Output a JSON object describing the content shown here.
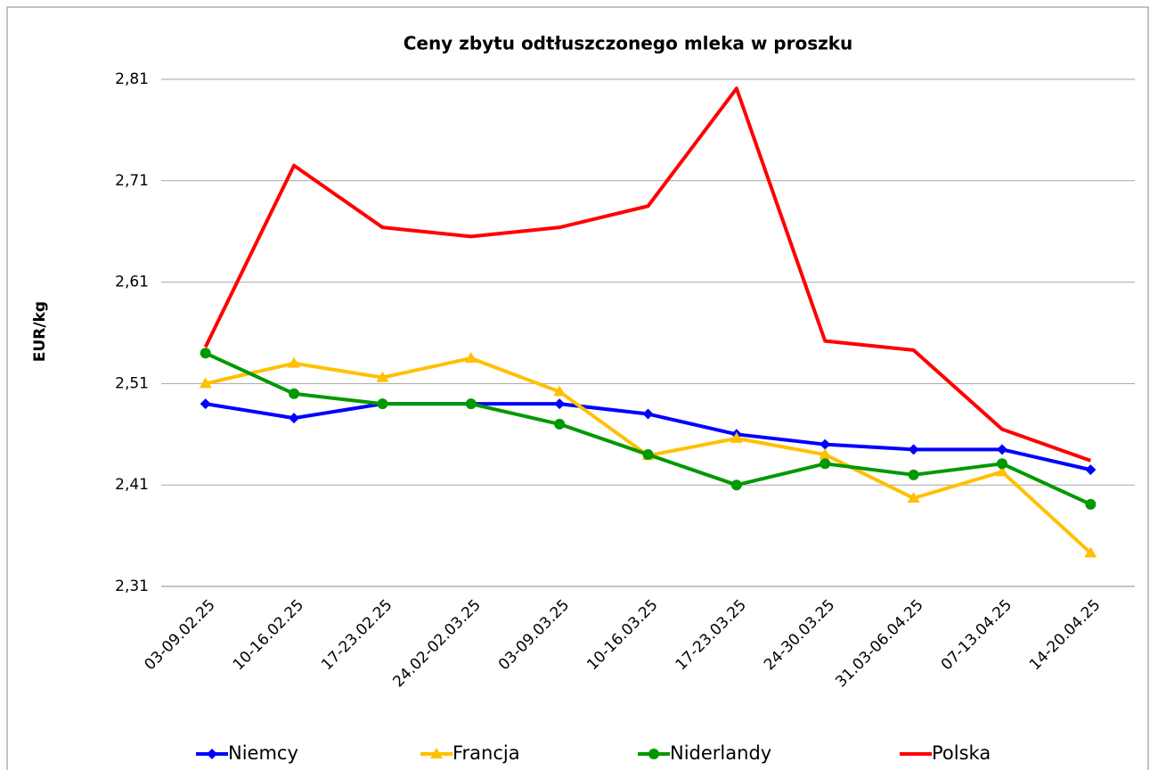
{
  "chart_data": {
    "type": "line",
    "title": "Ceny zbytu odtłuszczonego mleka w proszku",
    "y_label": "EUR/kg",
    "categories": [
      "03-09.02.25",
      "10-16.02.25",
      "17-23.02.25",
      "24.02-02.03.25",
      "03-09.03.25",
      "10-16.03.25",
      "17-23.03.25",
      "24-30.03.25",
      "31.03-06.04.25",
      "07-13.04.25",
      "14-20.04.25"
    ],
    "series": [
      {
        "name": "Niemcy",
        "color": "#0000ff",
        "marker": "diamond",
        "values": [
          2.49,
          2.476,
          2.49,
          2.49,
          2.49,
          2.48,
          2.46,
          2.45,
          2.445,
          2.445,
          2.425
        ]
      },
      {
        "name": "Francja",
        "color": "#ffc000",
        "marker": "triangle",
        "values": [
          2.51,
          2.53,
          2.516,
          2.535,
          2.502,
          2.439,
          2.456,
          2.44,
          2.397,
          2.423,
          2.343
        ]
      },
      {
        "name": "Niderlandy",
        "color": "#009900",
        "marker": "circle",
        "values": [
          2.54,
          2.5,
          2.49,
          2.49,
          2.47,
          2.44,
          2.41,
          2.431,
          2.42,
          2.431,
          2.391
        ]
      },
      {
        "name": "Polska",
        "color": "#ff0000",
        "marker": "none",
        "values": [
          2.546,
          2.725,
          2.664,
          2.655,
          2.664,
          2.685,
          2.801,
          2.552,
          2.543,
          2.465,
          2.434
        ]
      }
    ],
    "ylim": [
      2.31,
      2.81
    ],
    "yticks": [
      {
        "value": 2.31,
        "label": "2,31"
      },
      {
        "value": 2.41,
        "label": "2,41"
      },
      {
        "value": 2.51,
        "label": "2,51"
      },
      {
        "value": 2.61,
        "label": "2,61"
      },
      {
        "value": 2.71,
        "label": "2,71"
      },
      {
        "value": 2.81,
        "label": "2,81"
      }
    ],
    "grid": true,
    "legend": "bottom"
  }
}
